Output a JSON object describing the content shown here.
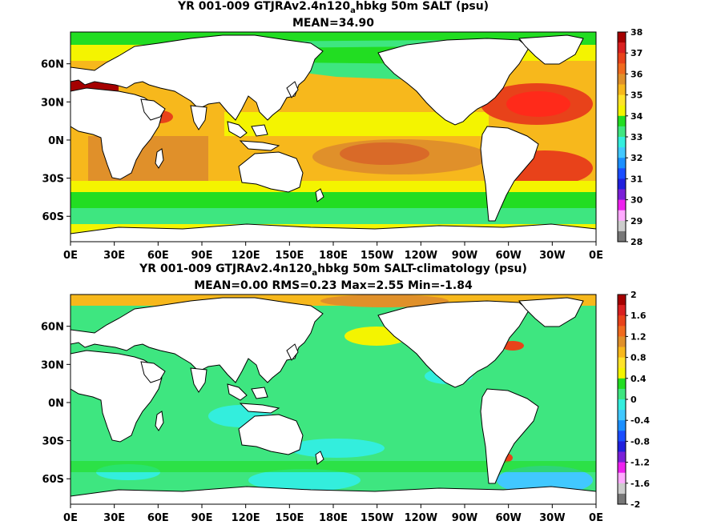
{
  "chart_data": [
    {
      "type": "heatmap",
      "title_main": "YR 001-009 GTJRAv2.4n120",
      "title_sub": "a",
      "title_rest": "hbkg 50m SALT (psu)",
      "stats": "MEAN=34.90",
      "x_ticks": [
        "0E",
        "30E",
        "60E",
        "90E",
        "120E",
        "150E",
        "180E",
        "150W",
        "120W",
        "90W",
        "60W",
        "30W",
        "0E"
      ],
      "y_ticks": [
        "60N",
        "30N",
        "0N",
        "30S",
        "60S"
      ],
      "y_tick_lat": [
        60,
        30,
        0,
        -30,
        -60
      ],
      "lat_range": [
        -80,
        85
      ],
      "lon_range": [
        0,
        360
      ],
      "colorbar": {
        "labels": [
          "38",
          "37",
          "36",
          "35",
          "34",
          "33",
          "32",
          "31",
          "30",
          "29",
          "28"
        ],
        "colors": [
          "#a50000",
          "#d92020",
          "#e8421a",
          "#f06a1e",
          "#e0902a",
          "#f7b81c",
          "#ffe32a",
          "#f4f400",
          "#22dd22",
          "#3ee680",
          "#33eedd",
          "#41c8ff",
          "#1b8fff",
          "#1a4dff",
          "#2020dd",
          "#7a20d8",
          "#ee22ee",
          "#ffaaff",
          "#cccccc",
          "#777777"
        ]
      }
    },
    {
      "type": "heatmap",
      "title_main": "YR 001-009 GTJRAv2.4n120",
      "title_sub": "a",
      "title_rest": "hbkg 50m SALT-climatology (psu)",
      "stats": "MEAN=0.00   RMS=0.23   Max=2.55   Min=-1.84",
      "x_ticks": [
        "0E",
        "30E",
        "60E",
        "90E",
        "120E",
        "150E",
        "180E",
        "150W",
        "120W",
        "90W",
        "60W",
        "30W",
        "0E"
      ],
      "y_ticks": [
        "60N",
        "30N",
        "0N",
        "30S",
        "60S"
      ],
      "y_tick_lat": [
        60,
        30,
        0,
        -30,
        -60
      ],
      "lat_range": [
        -80,
        85
      ],
      "lon_range": [
        0,
        360
      ],
      "colorbar": {
        "labels": [
          "2",
          "1.6",
          "1.2",
          "0.8",
          "0.4",
          "0",
          "-0.4",
          "-0.8",
          "-1.2",
          "-1.6",
          "-2"
        ],
        "colors": [
          "#a50000",
          "#d92020",
          "#e8421a",
          "#f06a1e",
          "#e0902a",
          "#f7b81c",
          "#ffe32a",
          "#f4f400",
          "#22dd22",
          "#3ee680",
          "#33eedd",
          "#41c8ff",
          "#1b8fff",
          "#1a4dff",
          "#2020dd",
          "#7a20d8",
          "#ee22ee",
          "#ffaaff",
          "#cccccc",
          "#777777"
        ]
      }
    }
  ]
}
